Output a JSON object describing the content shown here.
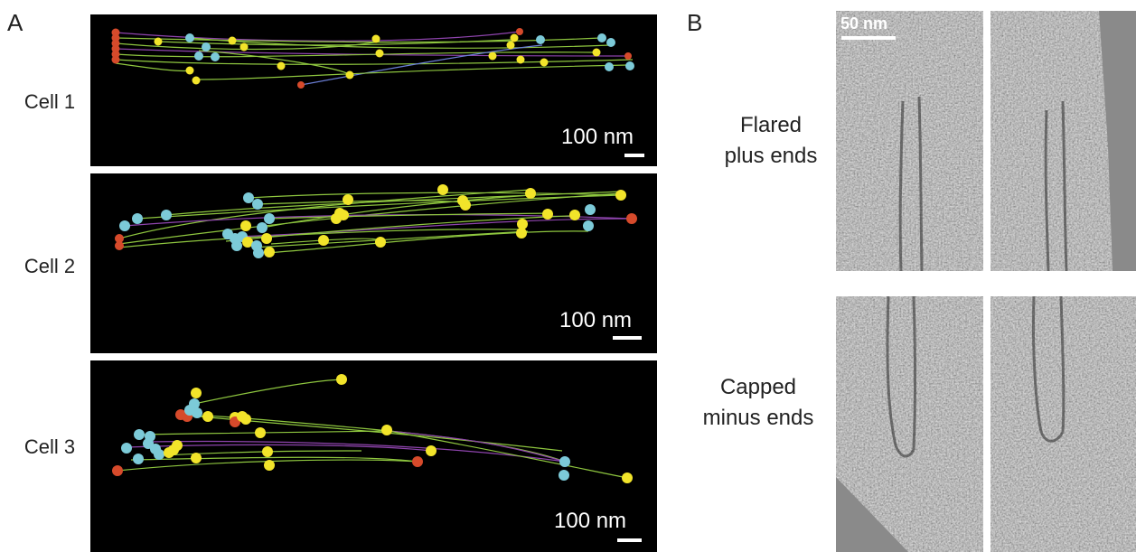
{
  "panels": {
    "a_label": "A",
    "b_label": "B"
  },
  "cells": [
    {
      "label": "Cell 1",
      "scale": "100 nm"
    },
    {
      "label": "Cell 2",
      "scale": "100 nm"
    },
    {
      "label": "Cell 3",
      "scale": "100 nm"
    }
  ],
  "rows": {
    "flared": [
      "Flared",
      "plus ends"
    ],
    "capped": [
      "Capped",
      "minus ends"
    ]
  },
  "em_scale": "50 nm",
  "colors": {
    "background": "#000000",
    "track_green": "#8ec63f",
    "track_purple": "#8e44ad",
    "end_yellow": "#f2e42a",
    "end_cyan": "#7ccad8",
    "end_red": "#d64a2b"
  }
}
